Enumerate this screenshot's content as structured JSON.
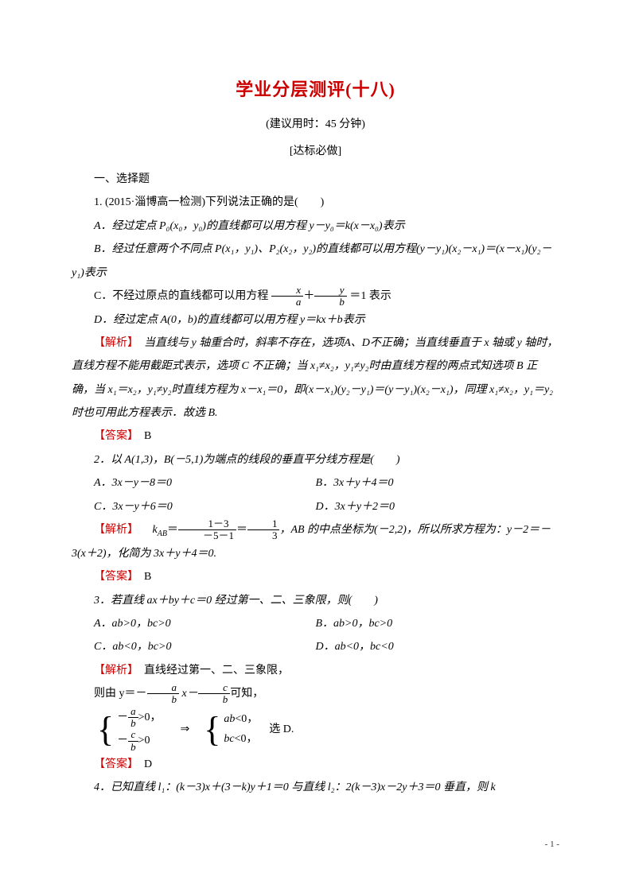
{
  "title": "学业分层测评(十八)",
  "subtitle": "(建议用时：45 分钟)",
  "section_label": "[达标必做]",
  "section1_heading": "一、选择题",
  "q1": {
    "stem": "1. (2015·淄博高一检测)下列说法正确的是(　　)",
    "optA": "A．经过定点 P₀(x₀，y₀)的直线都可以用方程 y－y₀＝k(x－x₀)表示",
    "optB": "B．经过任意两个不同点 P(x₁，y₁)、P₂(x₂，y₂)的直线都可以用方程(y－y₁)(x₂－x₁)＝(x－x₁)(y₂－y₁)表示",
    "optC_prefix": "C．不经过原点的直线都可以用方程",
    "optC_suffix": "＝1 表示",
    "optD": "D．经过定点 A(0，b)的直线都可以用方程 y＝kx＋b表示",
    "analysis_label": "【解析】",
    "analysis": "　当直线与 y 轴重合时，斜率不存在，选项A、D不正确；当直线垂直于 x 轴或 y 轴时，直线方程不能用截距式表示，选项 C 不正确；当 x₁≠x₂，y₁≠y₂时由直线方程的两点式知选项 B 正确，当 x₁＝x₂，y₁≠y₂时直线方程为 x－x₁＝0，即(x－x₁)(y₂－y₁)＝(y－y₁)(x₂－x₁)，同理 x₁≠x₂，y₁＝y₂时也可用此方程表示．故选 B.",
    "answer_label": "【答案】",
    "answer": "　B"
  },
  "q2": {
    "stem": "2．以 A(1,3)，B(－5,1)为端点的线段的垂直平分线方程是(　　)",
    "optA": "A．3x－y－8＝0",
    "optB": "B．3x＋y＋4＝0",
    "optC": "C．3x－y＋6＝0",
    "optD": "D．3x＋y＋2＝0",
    "analysis_label": "【解析】",
    "analysis_mid": "，AB 的中点坐标为(－2,2)，所以所求方程为：y－2＝－3(x＋2)，化简为 3x＋y＋4＝0.",
    "answer_label": "【答案】",
    "answer": "　B"
  },
  "q3": {
    "stem": "3．若直线 ax＋by＋c＝0 经过第一、二、三象限，则(　　)",
    "optA": "A．ab>0，bc>0",
    "optB": "B．ab>0，bc>0",
    "optC": "C．ab<0，bc>0",
    "optD": "D．ab<0，bc<0",
    "analysis_label": "【解析】",
    "analysis_p1": "　直线经过第一、二、三象限，",
    "analysis_p2_prefix": "则由 y＝－",
    "analysis_p2_mid": " x－",
    "analysis_p2_suffix": "可知，",
    "implies_text": "⇒",
    "select_text": "　选 D.",
    "answer_label": "【答案】",
    "answer": "　D"
  },
  "q4": {
    "stem": "4．已知直线 l₁：(k－3)x＋(3－k)y＋1＝0 与直线 l₂：2(k－3)x－2y＋3＝0 垂直，则 k"
  },
  "footer": "- 1 -",
  "colors": {
    "title_color": "#cc0000",
    "red": "#cc0000",
    "text": "#000000",
    "bg": "#ffffff"
  }
}
